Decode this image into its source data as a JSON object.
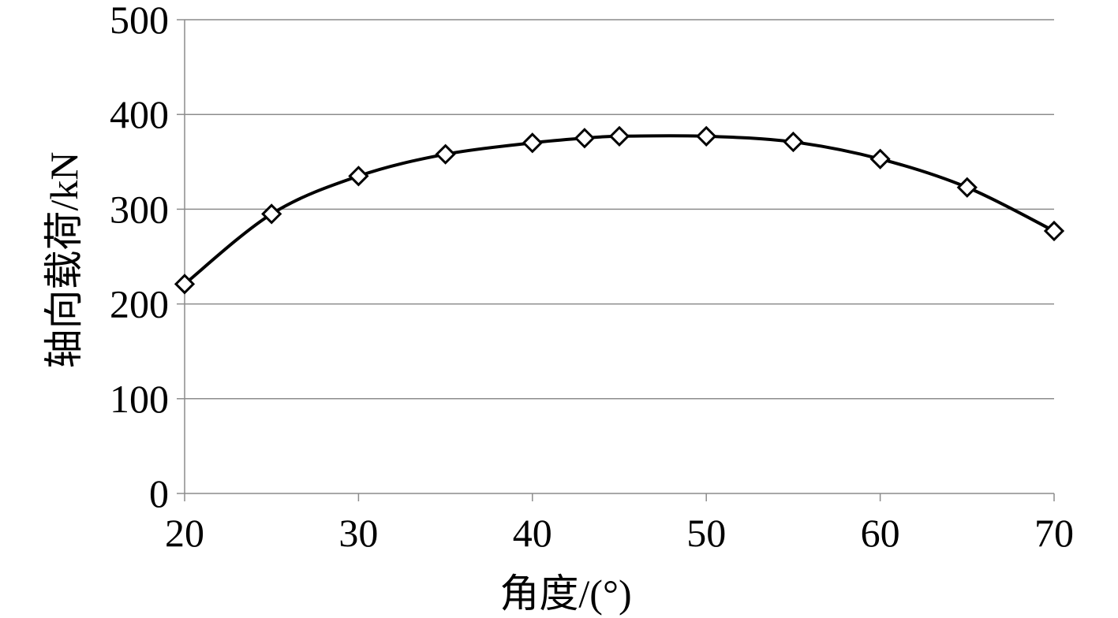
{
  "chart_data": {
    "type": "line",
    "xlabel": "角度/(°)",
    "ylabel": "轴向载荷/kN",
    "xlim": [
      20,
      70
    ],
    "ylim": [
      0,
      500
    ],
    "x_ticks": [
      20,
      30,
      40,
      50,
      60,
      70
    ],
    "y_ticks": [
      0,
      100,
      200,
      300,
      400,
      500
    ],
    "x_tick_labels": [
      "20",
      "30",
      "40",
      "50",
      "60",
      "70"
    ],
    "y_tick_labels": [
      "0",
      "100",
      "200",
      "300",
      "400",
      "500"
    ],
    "grid": "horizontal",
    "legend": "none",
    "marker": "diamond-open",
    "line_color": "#000000",
    "series": [
      {
        "x": [
          20,
          25,
          30,
          35,
          40,
          43,
          45,
          50,
          55,
          60,
          65,
          70
        ],
        "values": [
          221,
          295,
          335,
          358,
          370,
          375,
          377,
          377,
          371,
          353,
          323,
          277
        ]
      }
    ]
  }
}
